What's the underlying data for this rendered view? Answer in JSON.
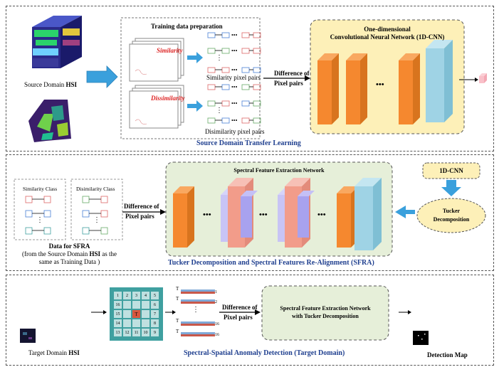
{
  "panel1": {
    "source_hsi_prefix": "Source Domain ",
    "source_hsi_bold": "HSI",
    "training_title": "Training data preparation",
    "similarity_word": "Similarity",
    "dissimilarity_word": "Dissimilarity",
    "similarity_pairs": "Similarity pixel pairs",
    "dissimilarity_pairs": "Disimilarity pixel pairs",
    "diff_label_1": "Difference of",
    "diff_label_2": "Pixel pairs",
    "cnn_title_1": "One-dimensional",
    "cnn_title_2": "Convolutional Neural Network (1D-CNN)",
    "ellipsis": "•••",
    "vdots": "⋮",
    "hdots": "•••",
    "section_title": "Source Domain Transfer Learning"
  },
  "panel2": {
    "similarity_class": "Similarity Class",
    "dissimilarity_class": "Disimilarity Class",
    "vdots": "⋮",
    "diff_label_1": "Difference of",
    "diff_label_2": "Pixel pairs",
    "network_title": "Spectral Feature Extraction Network",
    "ellipsis": "•••",
    "cnn_box": "1D-CNN",
    "tucker_1": "Tucker",
    "tucker_2": "Decomposition",
    "sfra_title": "Data for SFRA",
    "sfra_line2_prefix": "(from the Source Domain ",
    "sfra_line2_bold": "HSI",
    "sfra_line2_suffix": " as the",
    "sfra_line3": "same as Training Data )",
    "section_title": "Tucker Decomposition and Spectral Features Re-Alignment (SFRA)"
  },
  "panel3": {
    "grid_numbers": [
      "1",
      "2",
      "3",
      "4",
      "5",
      "16",
      "",
      "",
      "",
      "6",
      "15",
      "",
      "T",
      "",
      "7",
      "14",
      "",
      "",
      "",
      "8",
      "13",
      "12",
      "11",
      "10",
      "9"
    ],
    "center_label": "T",
    "pair_t": "T",
    "pair_nums": [
      "1",
      "2",
      "16"
    ],
    "pair_num_top": "1",
    "pair_num_2": "2",
    "pair_num_3": "16",
    "pair_num_4": "16",
    "vdots": "⋮",
    "diff_label_1": "Difference of",
    "diff_label_2": "Pixel pairs",
    "network_1": "Spectral Feature Extraction Network",
    "network_2": "with Tucker Decomposition",
    "target_prefix": "Target Domain ",
    "target_bold": "HSI",
    "section_title": "Spectral-Spatial Anomaly Detection (Target Domain)",
    "detection_map": "Detection Map"
  },
  "colors": {
    "panel_border": "#555555",
    "title_blue": "#1f3f8f",
    "cnn_bg": "#fdf0b8",
    "net_bg": "#e6efd9",
    "orange": "#f5882f",
    "cyan": "#9fd3e5",
    "arrow_blue": "#3aa0dc",
    "grid_teal": "#3fa0a0",
    "center_red": "#d9573f"
  }
}
